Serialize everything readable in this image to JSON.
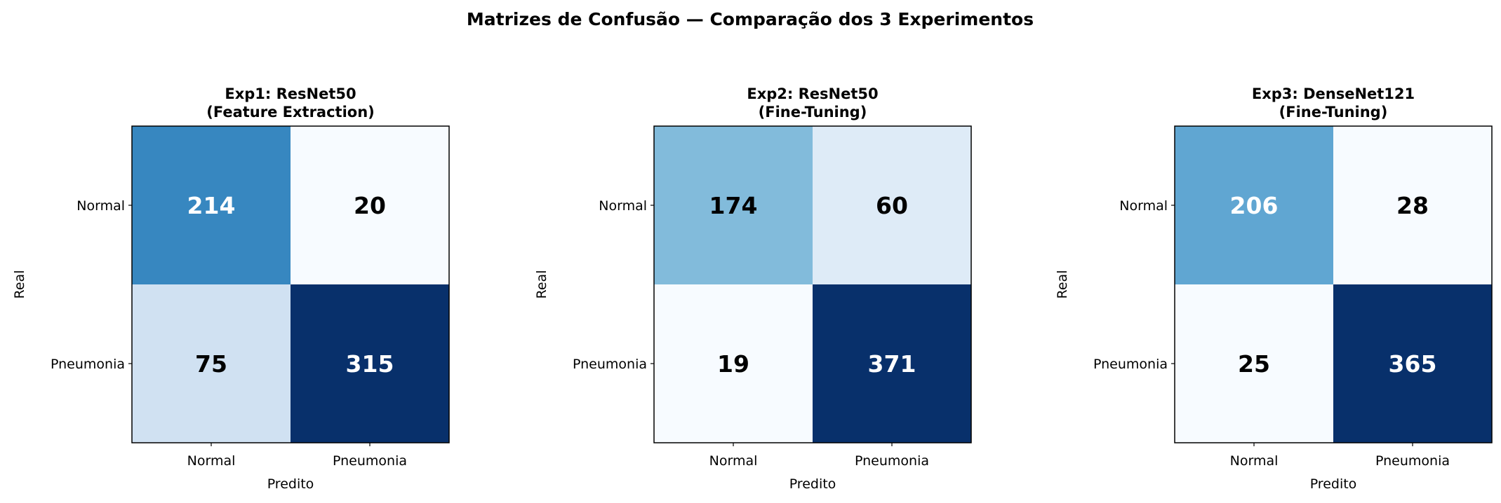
{
  "chart_data": {
    "title": "Matrizes de Confusão — Comparação dos 3 Experimentos",
    "panels": [
      {
        "type": "heatmap",
        "title": [
          "Exp1: ResNet50",
          "(Feature Extraction)"
        ],
        "xlabel": "Predito",
        "ylabel": "Real",
        "x_categories": [
          "Normal",
          "Pneumonia"
        ],
        "y_categories": [
          "Normal",
          "Pneumonia"
        ],
        "values": [
          [
            214,
            20
          ],
          [
            75,
            315
          ]
        ],
        "cell_colors": [
          [
            "#3787c0",
            "#f7fbff"
          ],
          [
            "#d0e1f2",
            "#08306b"
          ]
        ],
        "colormap": "Blues"
      },
      {
        "type": "heatmap",
        "title": [
          "Exp2: ResNet50",
          "(Fine-Tuning)"
        ],
        "xlabel": "Predito",
        "ylabel": "Real",
        "x_categories": [
          "Normal",
          "Pneumonia"
        ],
        "y_categories": [
          "Normal",
          "Pneumonia"
        ],
        "values": [
          [
            174,
            60
          ],
          [
            19,
            371
          ]
        ],
        "cell_colors": [
          [
            "#82bbdb",
            "#deebf7"
          ],
          [
            "#f7fbff",
            "#08306b"
          ]
        ],
        "colormap": "Blues"
      },
      {
        "type": "heatmap",
        "title": [
          "Exp3: DenseNet121",
          "(Fine-Tuning)"
        ],
        "xlabel": "Predito",
        "ylabel": "Real",
        "x_categories": [
          "Normal",
          "Pneumonia"
        ],
        "y_categories": [
          "Normal",
          "Pneumonia"
        ],
        "values": [
          [
            206,
            28
          ],
          [
            25,
            365
          ]
        ],
        "cell_colors": [
          [
            "#60a6d2",
            "#f7fbff"
          ],
          [
            "#f7fbff",
            "#08306b"
          ]
        ],
        "colormap": "Blues"
      }
    ]
  }
}
